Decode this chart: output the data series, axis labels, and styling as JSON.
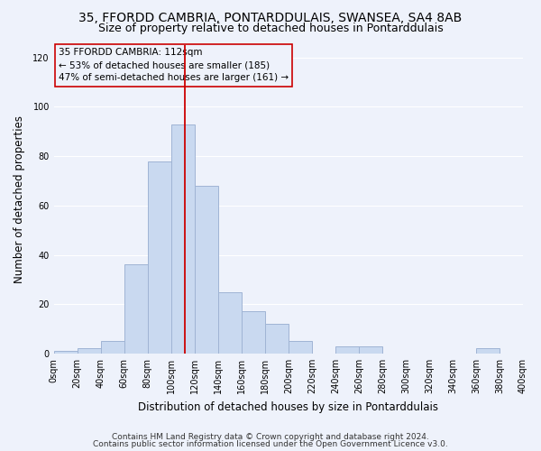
{
  "title": "35, FFORDD CAMBRIA, PONTARDDULAIS, SWANSEA, SA4 8AB",
  "subtitle": "Size of property relative to detached houses in Pontarddulais",
  "xlabel": "Distribution of detached houses by size in Pontarddulais",
  "ylabel": "Number of detached properties",
  "bar_edges": [
    0,
    20,
    40,
    60,
    80,
    100,
    120,
    140,
    160,
    180,
    200,
    220,
    240,
    260,
    280,
    300,
    320,
    340,
    360,
    380,
    400
  ],
  "bar_heights": [
    1,
    2,
    5,
    36,
    78,
    93,
    68,
    25,
    17,
    12,
    5,
    0,
    3,
    3,
    0,
    0,
    0,
    0,
    2,
    0
  ],
  "bar_color": "#c9d9f0",
  "bar_edgecolor": "#a0b4d4",
  "vline_x": 112,
  "vline_color": "#cc0000",
  "annotation_title": "35 FFORDD CAMBRIA: 112sqm",
  "annotation_line1": "← 53% of detached houses are smaller (185)",
  "annotation_line2": "47% of semi-detached houses are larger (161) →",
  "annotation_box_edgecolor": "#cc0000",
  "ylim": [
    0,
    125
  ],
  "yticks": [
    0,
    20,
    40,
    60,
    80,
    100,
    120
  ],
  "xtick_labels": [
    "0sqm",
    "20sqm",
    "40sqm",
    "60sqm",
    "80sqm",
    "100sqm",
    "120sqm",
    "140sqm",
    "160sqm",
    "180sqm",
    "200sqm",
    "220sqm",
    "240sqm",
    "260sqm",
    "280sqm",
    "300sqm",
    "320sqm",
    "340sqm",
    "360sqm",
    "380sqm",
    "400sqm"
  ],
  "footnote1": "Contains HM Land Registry data © Crown copyright and database right 2024.",
  "footnote2": "Contains public sector information licensed under the Open Government Licence v3.0.",
  "background_color": "#eef2fb",
  "grid_color": "#ffffff",
  "title_fontsize": 10,
  "subtitle_fontsize": 9,
  "axis_label_fontsize": 8.5,
  "tick_fontsize": 7,
  "annotation_fontsize": 7.5,
  "footnote_fontsize": 6.5
}
